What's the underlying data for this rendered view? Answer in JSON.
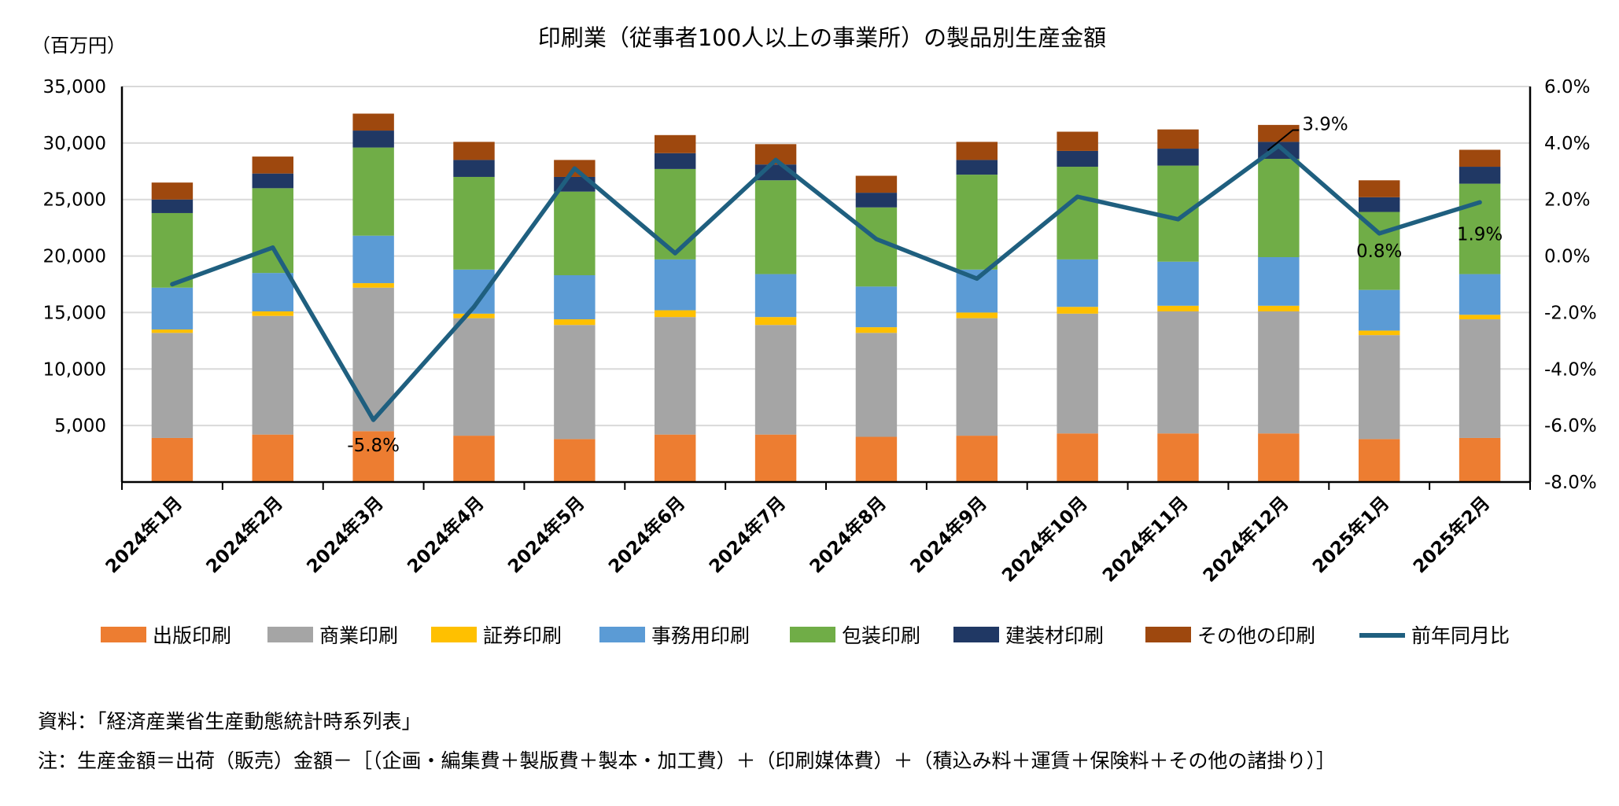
{
  "chart_data": {
    "type": "bar",
    "stacked": true,
    "title": "印刷業（従事者100人以上の事業所）の製品別生産金額",
    "ylabel": "（百万円）",
    "ylim": [
      0,
      35000
    ],
    "y_ticks": [
      "5,000",
      "10,000",
      "15,000",
      "20,000",
      "25,000",
      "30,000",
      "35,000"
    ],
    "y2lim": [
      -8.0,
      6.0
    ],
    "y2_ticks": [
      "-8.0%",
      "-6.0%",
      "-4.0%",
      "-2.0%",
      "0.0%",
      "2.0%",
      "4.0%",
      "6.0%"
    ],
    "grid": true,
    "legend_position": "bottom",
    "categories": [
      "2024年1月",
      "2024年2月",
      "2024年3月",
      "2024年4月",
      "2024年5月",
      "2024年6月",
      "2024年7月",
      "2024年8月",
      "2024年9月",
      "2024年10月",
      "2024年11月",
      "2024年12月",
      "2025年1月",
      "2025年2月"
    ],
    "series": [
      {
        "name": "出版印刷",
        "color": "#ED7D31",
        "values": [
          3900,
          4200,
          4500,
          4100,
          3800,
          4200,
          4200,
          4000,
          4100,
          4300,
          4300,
          4300,
          3800,
          3900
        ]
      },
      {
        "name": "商業印刷",
        "color": "#A5A5A5",
        "values": [
          9300,
          10500,
          12700,
          10400,
          10100,
          10400,
          9700,
          9200,
          10400,
          10600,
          10800,
          10800,
          9200,
          10500
        ]
      },
      {
        "name": "証券印刷",
        "color": "#FFC000",
        "values": [
          300,
          400,
          400,
          400,
          500,
          600,
          700,
          500,
          500,
          600,
          500,
          500,
          400,
          400
        ]
      },
      {
        "name": "事務用印刷",
        "color": "#5B9BD5",
        "values": [
          3700,
          3400,
          4200,
          3900,
          3900,
          4500,
          3800,
          3600,
          3800,
          4200,
          3900,
          4300,
          3600,
          3600
        ]
      },
      {
        "name": "包装印刷",
        "color": "#70AD47",
        "values": [
          6600,
          7500,
          7800,
          8200,
          7400,
          8000,
          8300,
          7000,
          8400,
          8200,
          8500,
          8700,
          6900,
          8000
        ]
      },
      {
        "name": "建装材印刷",
        "color": "#203864",
        "values": [
          1200,
          1300,
          1500,
          1500,
          1300,
          1400,
          1400,
          1300,
          1300,
          1400,
          1500,
          1500,
          1300,
          1500
        ]
      },
      {
        "name": "その他の印刷",
        "color": "#9E480E",
        "values": [
          1500,
          1500,
          1500,
          1600,
          1500,
          1600,
          1800,
          1500,
          1600,
          1700,
          1700,
          1500,
          1500,
          1500
        ]
      }
    ],
    "line_series": {
      "name": "前年同月比",
      "color": "#1F5F7F",
      "axis": "right",
      "values": [
        -1.0,
        0.3,
        -5.8,
        -1.8,
        3.1,
        0.1,
        3.4,
        0.6,
        -0.8,
        2.1,
        1.3,
        3.9,
        0.8,
        1.9
      ]
    },
    "data_labels": [
      {
        "index": 2,
        "text": "-5.8%"
      },
      {
        "index": 11,
        "text": "3.9%"
      },
      {
        "index": 12,
        "text": "0.8%"
      },
      {
        "index": 13,
        "text": "1.9%"
      }
    ]
  },
  "notes": {
    "source": "資料：「経済産業省生産動態統計時系列表」",
    "formula": "注：生産金額＝出荷（販売）金額－［（企画・編集費＋製版費＋製本・加工費）＋（印刷媒体費）＋（積込み料＋運賃＋保険料＋その他の諸掛り）］"
  }
}
